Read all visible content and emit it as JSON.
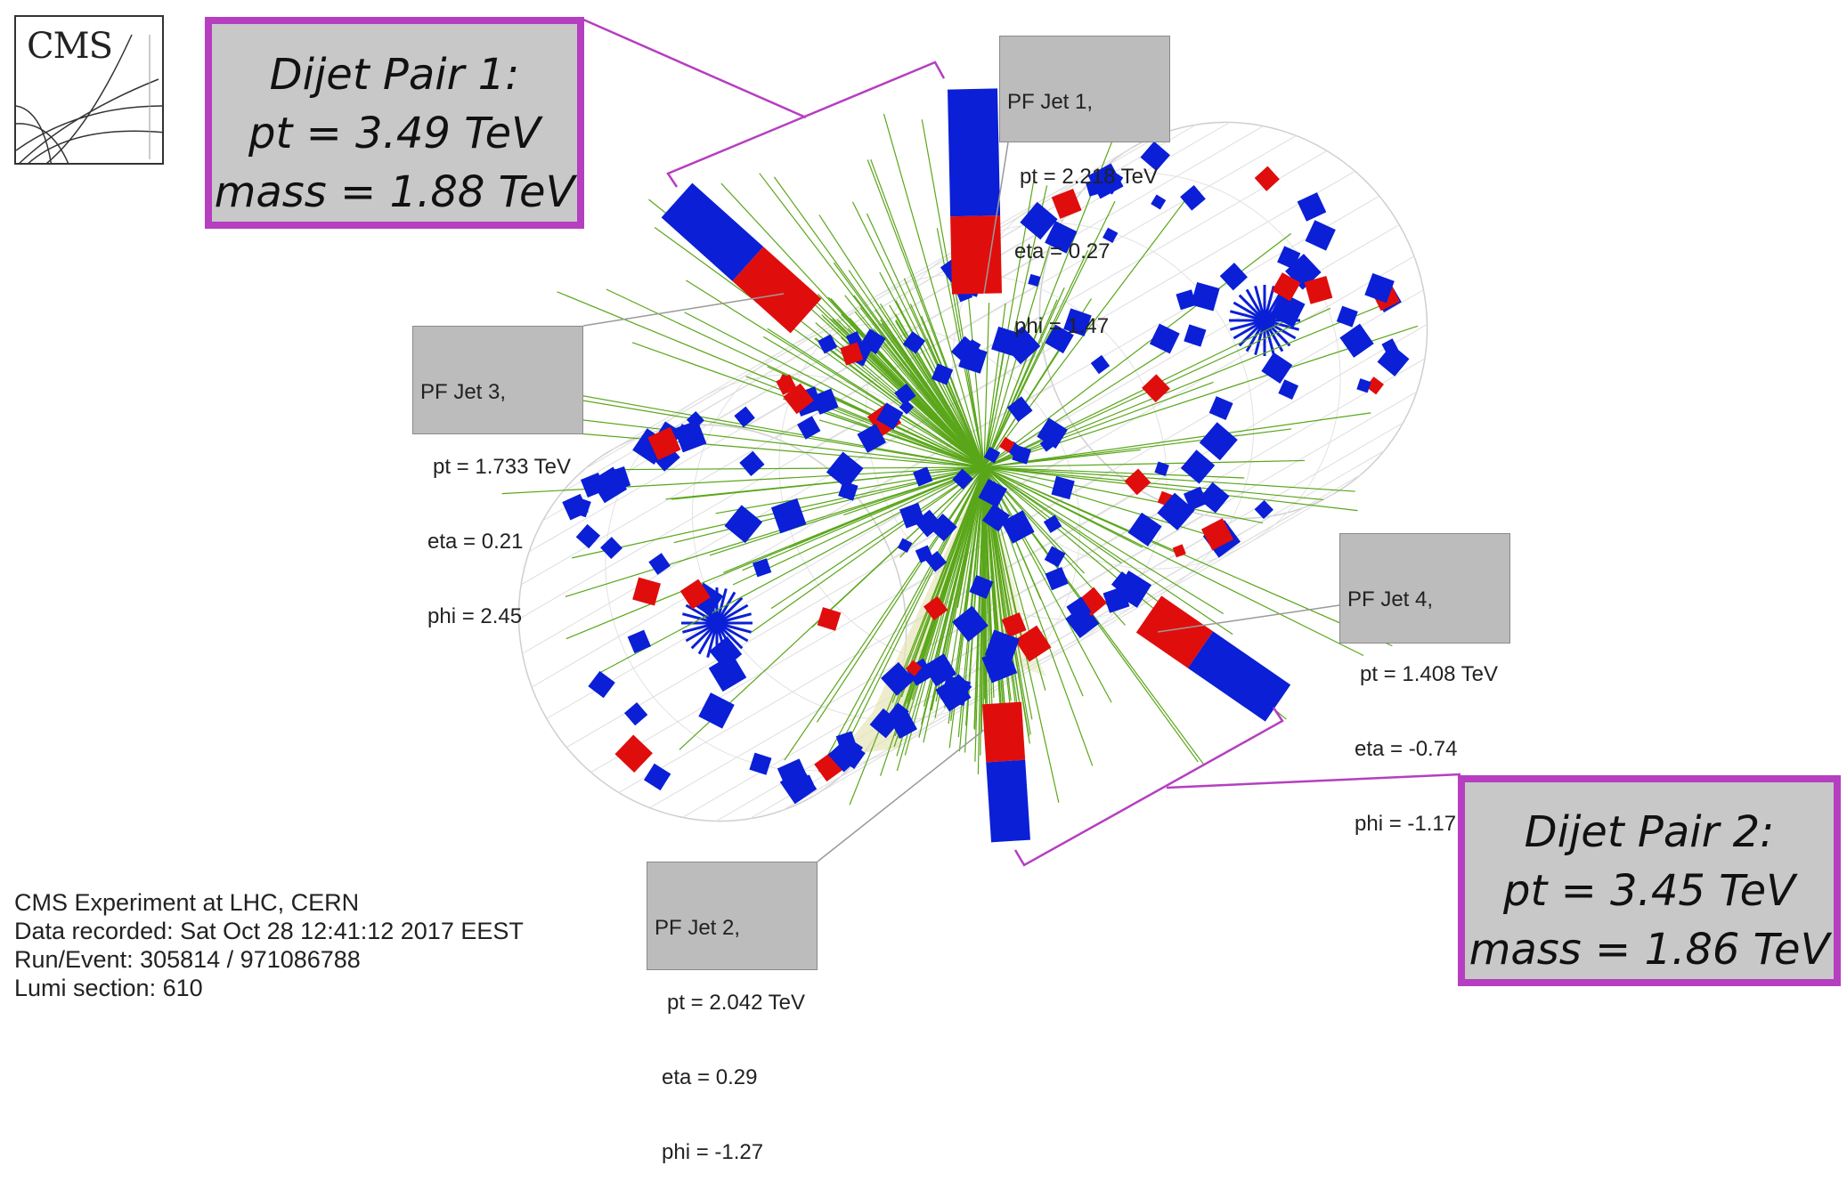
{
  "logo": {
    "text": "CMS"
  },
  "pair1": {
    "title": "Dijet Pair 1:",
    "pt": "pt = 3.49 TeV",
    "mass": "mass = 1.88 TeV"
  },
  "pair2": {
    "title": "Dijet Pair 2:",
    "pt": "pt = 3.45 TeV",
    "mass": "mass = 1.86 TeV"
  },
  "jets": [
    {
      "name": "PF Jet 1,",
      "pt": "pt = 2.218 TeV",
      "eta": "eta = 0.27",
      "phi": "phi = 1.47"
    },
    {
      "name": "PF Jet 2,",
      "pt": "pt = 2.042 TeV",
      "eta": "eta = 0.29",
      "phi": "phi = -1.27"
    },
    {
      "name": "PF Jet 3,",
      "pt": "pt = 1.733 TeV",
      "eta": "eta = 0.21",
      "phi": "phi = 2.45"
    },
    {
      "name": "PF Jet 4,",
      "pt": "pt = 1.408 TeV",
      "eta": "eta = -0.74",
      "phi": "phi = -1.17"
    }
  ],
  "info": {
    "experiment": "CMS Experiment at LHC, CERN",
    "recorded": "Data recorded: Sat Oct 28 12:41:12 2017 EEST",
    "run_event": "Run/Event: 305814 / 971086788",
    "lumi": "Lumi section: 610"
  },
  "colors": {
    "pair_border": "#b53fc0",
    "tower_blue": "#0a1fd6",
    "tower_red": "#e00d0d",
    "track_green": "#5aa61a",
    "jet_cone": "#e6e6b8"
  }
}
